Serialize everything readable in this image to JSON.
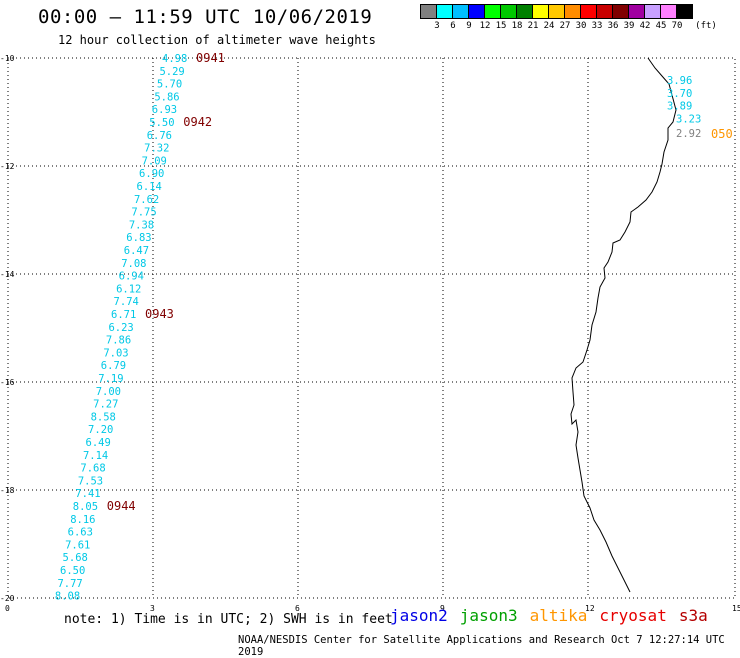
{
  "header": {
    "title": "00:00 – 11:59 UTC 10/06/2019",
    "subtitle": "12 hour collection of altimeter wave heights"
  },
  "legend": {
    "unit": "(ft)",
    "colors": [
      "#808080",
      "#00ffff",
      "#00bfff",
      "#0000ff",
      "#00ff00",
      "#00c800",
      "#008000",
      "#ffff00",
      "#ffc800",
      "#ff8c00",
      "#ff0000",
      "#c80000",
      "#800000",
      "#a000a0",
      "#c8a0ff",
      "#ff80ff",
      "#000000"
    ],
    "labels": [
      "3",
      "6",
      "9",
      "12",
      "15",
      "18",
      "21",
      "24",
      "27",
      "30",
      "33",
      "36",
      "39",
      "42",
      "45",
      "70"
    ]
  },
  "axes": {
    "y_ticks": [
      "-10",
      "-12",
      "-14",
      "-16",
      "-18",
      "-20"
    ],
    "x_ticks": [
      "0",
      "3",
      "6",
      "9",
      "12",
      "15"
    ]
  },
  "track_main": {
    "color": "#00c8e6",
    "values": [
      "4.98",
      "5.29",
      "5.70",
      "5.86",
      "6.93",
      "5.50",
      "6.76",
      "7.32",
      "7.09",
      "6.90",
      "6.14",
      "7.62",
      "7.75",
      "7.38",
      "6.83",
      "6.47",
      "7.08",
      "6.94",
      "6.12",
      "7.74",
      "6.71",
      "6.23",
      "7.86",
      "7.03",
      "6.79",
      "7.19",
      "7.00",
      "7.27",
      "8.58",
      "7.20",
      "6.49",
      "7.14",
      "7.68",
      "7.53",
      "7.41",
      "8.05",
      "8.16",
      "6.63",
      "7.61",
      "5.68",
      "6.50",
      "7.77",
      "8.08"
    ],
    "time_labels": [
      {
        "text": "0941",
        "index": 0
      },
      {
        "text": "0942",
        "index": 5
      },
      {
        "text": "0943",
        "index": 20
      },
      {
        "text": "0944",
        "index": 35
      }
    ]
  },
  "track_coast": {
    "color": "#00c8e6",
    "values": [
      "3.96",
      "3.70",
      "3.89",
      "3.23"
    ],
    "grey_value": "2.92",
    "time_label": "050"
  },
  "footer": {
    "note": "note: 1) Time is in UTC; 2) SWH is in feet",
    "satellites": [
      {
        "name": "jason2",
        "color": "#0000e6"
      },
      {
        "name": "jason3",
        "color": "#00a000"
      },
      {
        "name": "altika",
        "color": "#ff9600"
      },
      {
        "name": "cryosat",
        "color": "#e60000"
      },
      {
        "name": "s3a",
        "color": "#b40000"
      }
    ],
    "credit": "NOAA/NESDIS Center for Satellite Applications and Research    Oct  7 12:27:14 UTC 2019"
  }
}
